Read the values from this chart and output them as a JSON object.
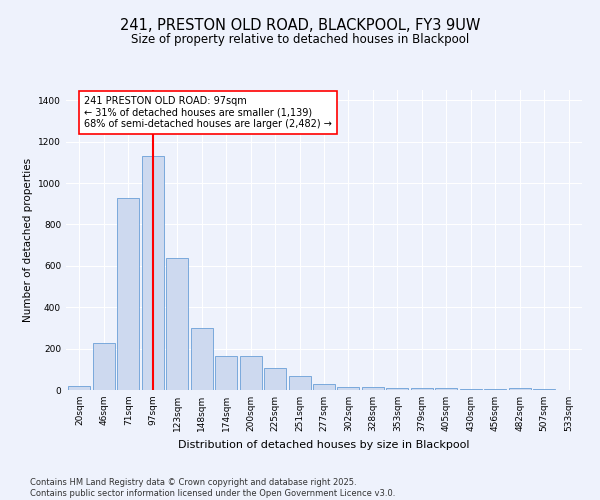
{
  "title": "241, PRESTON OLD ROAD, BLACKPOOL, FY3 9UW",
  "subtitle": "Size of property relative to detached houses in Blackpool",
  "xlabel": "Distribution of detached houses by size in Blackpool",
  "ylabel": "Number of detached properties",
  "categories": [
    "20sqm",
    "46sqm",
    "71sqm",
    "97sqm",
    "123sqm",
    "148sqm",
    "174sqm",
    "200sqm",
    "225sqm",
    "251sqm",
    "277sqm",
    "302sqm",
    "328sqm",
    "353sqm",
    "379sqm",
    "405sqm",
    "430sqm",
    "456sqm",
    "482sqm",
    "507sqm",
    "533sqm"
  ],
  "values": [
    20,
    225,
    930,
    1130,
    640,
    300,
    165,
    165,
    105,
    70,
    30,
    15,
    15,
    10,
    10,
    10,
    5,
    5,
    10,
    5,
    2
  ],
  "bar_color": "#cdd9ef",
  "bar_edge_color": "#6a9fd8",
  "vline_x_idx": 3,
  "vline_color": "red",
  "annotation_text": "241 PRESTON OLD ROAD: 97sqm\n← 31% of detached houses are smaller (1,139)\n68% of semi-detached houses are larger (2,482) →",
  "annotation_box_facecolor": "white",
  "annotation_box_edgecolor": "red",
  "ylim": [
    0,
    1450
  ],
  "yticks": [
    0,
    200,
    400,
    600,
    800,
    1000,
    1200,
    1400
  ],
  "background_color": "#eef2fc",
  "grid_color": "white",
  "footer_text": "Contains HM Land Registry data © Crown copyright and database right 2025.\nContains public sector information licensed under the Open Government Licence v3.0.",
  "title_fontsize": 10.5,
  "subtitle_fontsize": 8.5,
  "xlabel_fontsize": 8,
  "ylabel_fontsize": 7.5,
  "tick_fontsize": 6.5,
  "annotation_fontsize": 7,
  "footer_fontsize": 6
}
